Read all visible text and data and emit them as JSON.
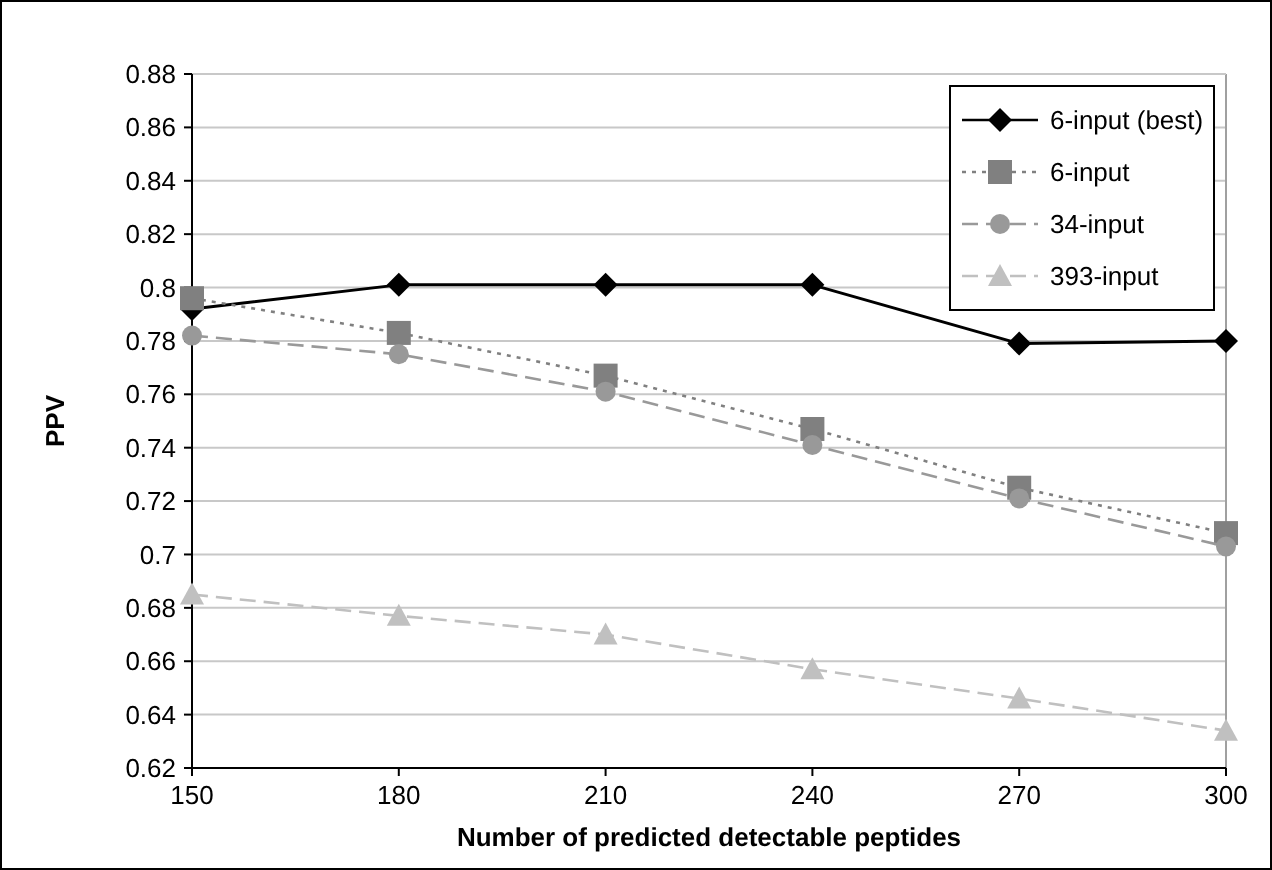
{
  "chart_data": {
    "type": "line",
    "xlabel": "Number of predicted detectable peptides",
    "ylabel": "PPV",
    "x": [
      150,
      180,
      210,
      240,
      270,
      300
    ],
    "xlim": [
      150,
      300
    ],
    "xticks": [
      150,
      180,
      210,
      240,
      270,
      300
    ],
    "ylim": [
      0.62,
      0.88
    ],
    "yticks": [
      0.62,
      0.64,
      0.66,
      0.68,
      0.7,
      0.72,
      0.74,
      0.76,
      0.78,
      0.8,
      0.82,
      0.84,
      0.86,
      0.88
    ],
    "grid": "y",
    "legend": "top right",
    "series": [
      {
        "name": "6-input (best)",
        "color": "#000000",
        "marker": "diamond",
        "line_style": "solid",
        "values": [
          0.792,
          0.801,
          0.801,
          0.801,
          0.779,
          0.78
        ]
      },
      {
        "name": "6-input",
        "color": "#808080",
        "marker": "square",
        "line_style": "dotted",
        "values": [
          0.796,
          0.783,
          0.767,
          0.747,
          0.725,
          0.708
        ]
      },
      {
        "name": "34-input",
        "color": "#999999",
        "marker": "circle",
        "line_style": "dashed",
        "values": [
          0.782,
          0.775,
          0.761,
          0.741,
          0.721,
          0.703
        ]
      },
      {
        "name": "393-input",
        "color": "#c0c0c0",
        "marker": "triangle",
        "line_style": "dashed",
        "values": [
          0.685,
          0.677,
          0.67,
          0.657,
          0.646,
          0.634
        ]
      }
    ]
  }
}
